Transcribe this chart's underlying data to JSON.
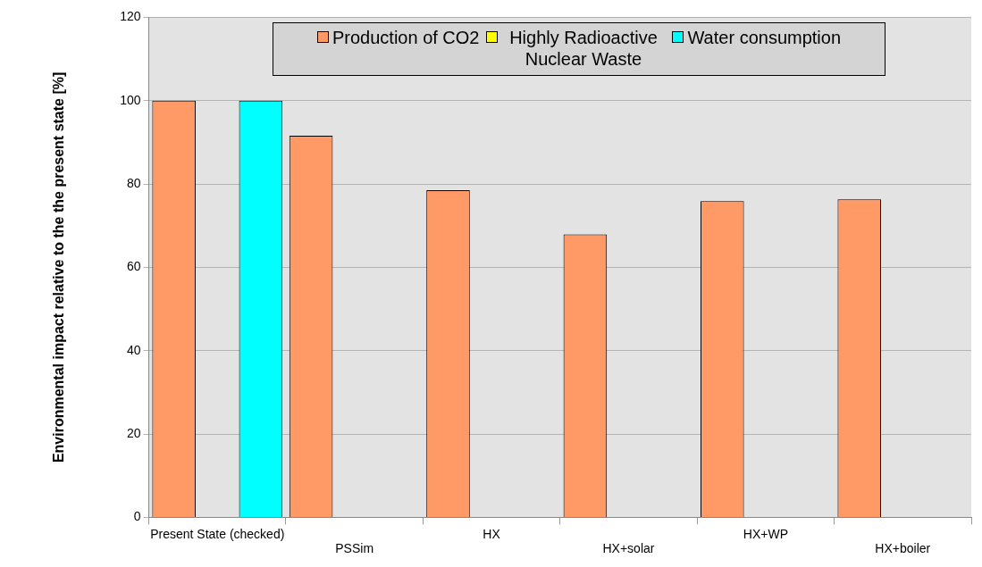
{
  "chart_data": {
    "type": "bar",
    "ylabel": "Environmental impact relative to the the present state [%]",
    "categories": [
      "Present State (checked)",
      "PSSim",
      "HX",
      "HX+solar",
      "HX+WP",
      "HX+boiler"
    ],
    "series": [
      {
        "name": "Production of CO2",
        "color": "#ff9966",
        "values": [
          100,
          91.6,
          78.5,
          67.9,
          75.9,
          76.3
        ]
      },
      {
        "name": "Highly Radioactive Nuclear Waste",
        "color": "#ffff00",
        "values": [
          null,
          null,
          null,
          null,
          null,
          null
        ]
      },
      {
        "name": "Water consumption",
        "color": "#00ffff",
        "values": [
          100,
          null,
          null,
          null,
          null,
          null
        ]
      }
    ],
    "ylim": [
      0,
      120
    ],
    "yticks": [
      0,
      20,
      40,
      60,
      80,
      100,
      120
    ],
    "grid": "y",
    "legend": "top"
  }
}
